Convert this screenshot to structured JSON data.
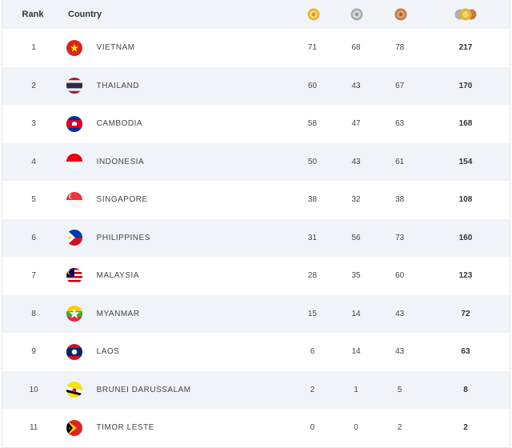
{
  "header": {
    "rank_label": "Rank",
    "country_label": "Country",
    "gold_icon": "gold-medal-icon",
    "silver_icon": "silver-medal-icon",
    "bronze_icon": "bronze-medal-icon",
    "total_icon": "total-medals-icon"
  },
  "colors": {
    "header_bg": "#f0f3f8",
    "alt_row_bg": "#f0f3f8",
    "gold": "#e3b53c",
    "silver": "#b9b9b9",
    "bronze": "#cd7f4a"
  },
  "rows": [
    {
      "rank": "1",
      "country": "VIETNAM",
      "gold": "71",
      "silver": "68",
      "bronze": "78",
      "total": "217",
      "flag": "vietnam-flag-icon"
    },
    {
      "rank": "2",
      "country": "THAILAND",
      "gold": "60",
      "silver": "43",
      "bronze": "67",
      "total": "170",
      "flag": "thailand-flag-icon"
    },
    {
      "rank": "3",
      "country": "CAMBODIA",
      "gold": "58",
      "silver": "47",
      "bronze": "63",
      "total": "168",
      "flag": "cambodia-flag-icon"
    },
    {
      "rank": "4",
      "country": "INDONESIA",
      "gold": "50",
      "silver": "43",
      "bronze": "61",
      "total": "154",
      "flag": "indonesia-flag-icon"
    },
    {
      "rank": "5",
      "country": "SINGAPORE",
      "gold": "38",
      "silver": "32",
      "bronze": "38",
      "total": "108",
      "flag": "singapore-flag-icon"
    },
    {
      "rank": "6",
      "country": "PHILIPPINES",
      "gold": "31",
      "silver": "56",
      "bronze": "73",
      "total": "160",
      "flag": "philippines-flag-icon"
    },
    {
      "rank": "7",
      "country": "MALAYSIA",
      "gold": "28",
      "silver": "35",
      "bronze": "60",
      "total": "123",
      "flag": "malaysia-flag-icon"
    },
    {
      "rank": "8",
      "country": "MYANMAR",
      "gold": "15",
      "silver": "14",
      "bronze": "43",
      "total": "72",
      "flag": "myanmar-flag-icon"
    },
    {
      "rank": "9",
      "country": "LAOS",
      "gold": "6",
      "silver": "14",
      "bronze": "43",
      "total": "63",
      "flag": "laos-flag-icon"
    },
    {
      "rank": "10",
      "country": "BRUNEI DARUSSALAM",
      "gold": "2",
      "silver": "1",
      "bronze": "5",
      "total": "8",
      "flag": "brunei-flag-icon"
    },
    {
      "rank": "11",
      "country": "TIMOR LESTE",
      "gold": "0",
      "silver": "0",
      "bronze": "2",
      "total": "2",
      "flag": "timor-leste-flag-icon"
    }
  ]
}
